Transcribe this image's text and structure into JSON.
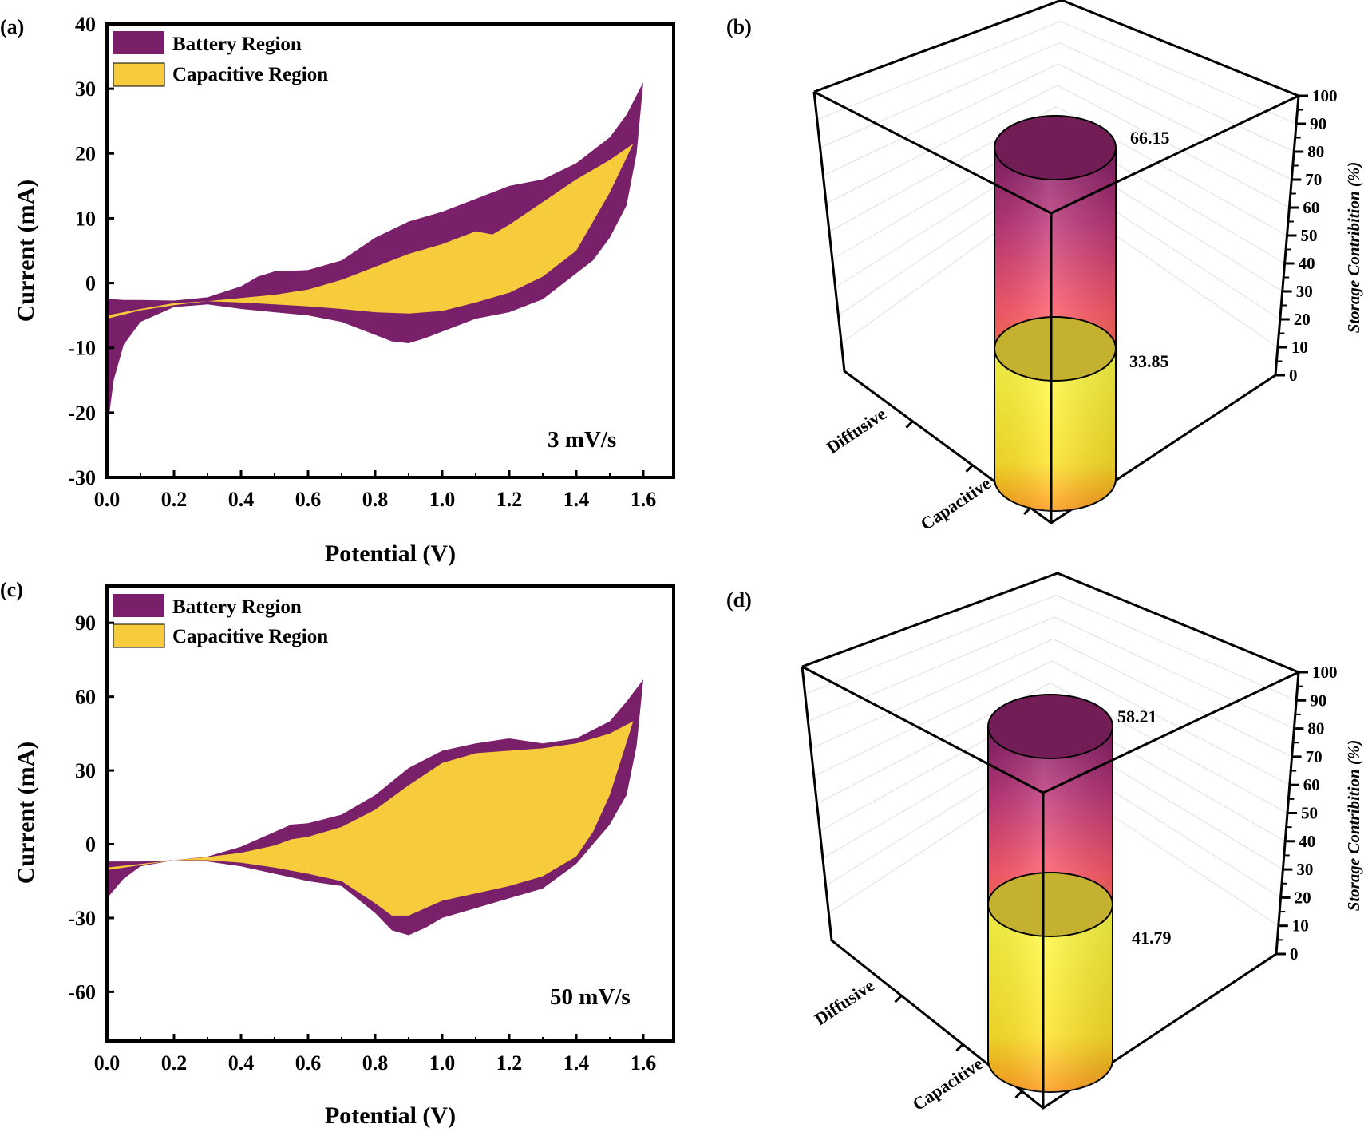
{
  "panels": {
    "a": {
      "label": "(a)"
    },
    "b": {
      "label": "(b)"
    },
    "c": {
      "label": "(c)"
    },
    "d": {
      "label": "(d)"
    }
  },
  "colors": {
    "battery": "#7a1f6a",
    "capacitive": "#f7cc3c",
    "axis": "#000000"
  },
  "chart_data": [
    {
      "id": "a",
      "type": "area",
      "xlabel": "Potential (V)",
      "ylabel": "Current (mA)",
      "xlim": [
        0.0,
        1.7
      ],
      "ylim": [
        -30,
        40
      ],
      "xticks": [
        "0.0",
        "0.2",
        "0.4",
        "0.6",
        "0.8",
        "1.0",
        "1.2",
        "1.4",
        "1.6"
      ],
      "yticks": [
        "-30",
        "-20",
        "-10",
        "0",
        "10",
        "20",
        "30",
        "40"
      ],
      "annotation": "3 mV/s",
      "legend": {
        "position": "top-left",
        "entries": [
          "Battery Region",
          "Capacitive Region"
        ]
      },
      "series": [
        {
          "name": "Battery Region",
          "x": [
            0.0,
            0.02,
            0.05,
            0.1,
            0.2,
            0.3,
            0.4,
            0.45,
            0.5,
            0.6,
            0.7,
            0.8,
            0.9,
            1.0,
            1.1,
            1.2,
            1.3,
            1.4,
            1.5,
            1.55,
            1.6,
            1.58,
            1.55,
            1.5,
            1.45,
            1.4,
            1.3,
            1.2,
            1.1,
            1.0,
            0.95,
            0.9,
            0.85,
            0.8,
            0.7,
            0.6,
            0.5,
            0.4,
            0.3,
            0.2,
            0.1,
            0.05,
            0.02,
            0.0
          ],
          "y": [
            -2.5,
            -2.5,
            -2.6,
            -2.6,
            -2.7,
            -2.2,
            -0.5,
            1.0,
            1.8,
            2.0,
            3.5,
            7.0,
            9.5,
            11.0,
            13.0,
            15.0,
            16.0,
            18.5,
            22.5,
            26.0,
            31.0,
            20.0,
            12.0,
            7.0,
            3.5,
            1.5,
            -2.5,
            -4.5,
            -5.5,
            -7.5,
            -8.5,
            -9.3,
            -9.0,
            -8.0,
            -6.0,
            -5.0,
            -4.5,
            -4.0,
            -3.3,
            -3.7,
            -6.0,
            -9.5,
            -15.0,
            -23.0
          ]
        },
        {
          "name": "Capacitive Region",
          "x": [
            0.0,
            0.1,
            0.2,
            0.3,
            0.4,
            0.5,
            0.6,
            0.7,
            0.8,
            0.9,
            1.0,
            1.1,
            1.15,
            1.2,
            1.3,
            1.4,
            1.5,
            1.57,
            1.5,
            1.45,
            1.4,
            1.3,
            1.2,
            1.1,
            1.0,
            0.9,
            0.8,
            0.7,
            0.6,
            0.5,
            0.4,
            0.3,
            0.2,
            0.1,
            0.0
          ],
          "y": [
            -5.5,
            -4.2,
            -3.4,
            -2.8,
            -2.3,
            -1.8,
            -1.0,
            0.5,
            2.5,
            4.5,
            6.0,
            8.0,
            7.5,
            9.0,
            12.5,
            16.0,
            19.0,
            21.5,
            14.0,
            9.5,
            5.0,
            1.0,
            -1.5,
            -3.0,
            -4.3,
            -4.7,
            -4.5,
            -4.0,
            -3.6,
            -3.3,
            -3.0,
            -2.8,
            -3.1,
            -4.0,
            -5.0
          ]
        }
      ]
    },
    {
      "id": "b",
      "type": "bar",
      "subtype": "3d-cylinder",
      "categories": [
        "Diffusive",
        "Capacitive"
      ],
      "values": [
        66.15,
        33.85
      ],
      "value_labels": [
        "66.15",
        "33.85"
      ],
      "zlabel": "Storage Contribition (%)",
      "zlim": [
        0,
        100
      ],
      "zticks": [
        "0",
        "10",
        "20",
        "30",
        "40",
        "50",
        "60",
        "70",
        "80",
        "90",
        "100"
      ]
    },
    {
      "id": "c",
      "type": "area",
      "xlabel": "Potential (V)",
      "ylabel": "Current (mA)",
      "xlim": [
        0.0,
        1.7
      ],
      "ylim": [
        -80,
        105
      ],
      "xticks": [
        "0.0",
        "0.2",
        "0.4",
        "0.6",
        "0.8",
        "1.0",
        "1.2",
        "1.4",
        "1.6"
      ],
      "yticks": [
        "-60",
        "-30",
        "0",
        "30",
        "60",
        "90"
      ],
      "annotation": "50 mV/s",
      "legend": {
        "position": "top-left",
        "entries": [
          "Battery Region",
          "Capacitive Region"
        ]
      },
      "series": [
        {
          "name": "Battery Region",
          "x": [
            0.0,
            0.05,
            0.1,
            0.2,
            0.3,
            0.4,
            0.5,
            0.55,
            0.6,
            0.7,
            0.8,
            0.9,
            1.0,
            1.1,
            1.2,
            1.3,
            1.4,
            1.5,
            1.55,
            1.6,
            1.58,
            1.55,
            1.5,
            1.45,
            1.4,
            1.3,
            1.2,
            1.1,
            1.0,
            0.95,
            0.9,
            0.85,
            0.8,
            0.7,
            0.6,
            0.5,
            0.4,
            0.3,
            0.2,
            0.1,
            0.05,
            0.0
          ],
          "y": [
            -7,
            -7,
            -7,
            -6.5,
            -5,
            -1,
            5,
            8,
            8.5,
            12,
            20,
            31,
            38,
            41,
            43,
            41,
            43,
            50,
            58,
            67,
            40,
            20,
            8,
            0,
            -8,
            -18,
            -22,
            -26,
            -30,
            -34,
            -37,
            -35,
            -28,
            -17,
            -15,
            -12,
            -9,
            -7,
            -6.5,
            -9,
            -14,
            -22
          ]
        },
        {
          "name": "Capacitive Region",
          "x": [
            0.0,
            0.1,
            0.2,
            0.3,
            0.4,
            0.5,
            0.55,
            0.6,
            0.7,
            0.8,
            0.9,
            1.0,
            1.1,
            1.2,
            1.3,
            1.4,
            1.5,
            1.57,
            1.5,
            1.45,
            1.4,
            1.3,
            1.2,
            1.1,
            1.0,
            0.95,
            0.9,
            0.85,
            0.8,
            0.7,
            0.6,
            0.5,
            0.4,
            0.3,
            0.2,
            0.1,
            0.0
          ],
          "y": [
            -10.5,
            -8.5,
            -6.5,
            -5.2,
            -3.5,
            -0.5,
            2,
            3,
            7,
            14,
            24,
            33,
            37,
            38,
            39,
            41,
            45,
            50,
            20,
            5,
            -5,
            -13,
            -17,
            -20,
            -23,
            -26,
            -29,
            -29,
            -24,
            -15,
            -12,
            -9.5,
            -7.5,
            -6.5,
            -6.5,
            -8,
            -9.5
          ]
        }
      ]
    },
    {
      "id": "d",
      "type": "bar",
      "subtype": "3d-cylinder",
      "categories": [
        "Diffusive",
        "Capacitive"
      ],
      "values": [
        58.21,
        41.79
      ],
      "value_labels": [
        "58.21",
        "41.79"
      ],
      "zlabel": "Storage Contribition (%)",
      "zlim": [
        0,
        100
      ],
      "zticks": [
        "0",
        "10",
        "20",
        "30",
        "40",
        "50",
        "60",
        "70",
        "80",
        "90",
        "100"
      ]
    }
  ]
}
